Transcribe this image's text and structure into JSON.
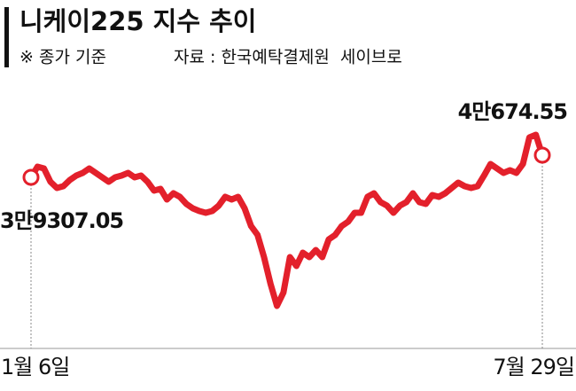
{
  "chart_data": {
    "type": "line",
    "title": "니케이225 지수 추이",
    "subtitle": "※ 종가 기준",
    "source": "자료 : 한국예탁결제원  세이브로",
    "color": "#e3202b",
    "categories": [
      "1월 6일",
      null,
      null,
      null,
      null,
      null,
      null,
      null,
      null,
      null,
      null,
      null,
      null,
      null,
      null,
      null,
      null,
      null,
      null,
      null,
      null,
      null,
      null,
      null,
      null,
      null,
      null,
      null,
      null,
      null,
      null,
      null,
      null,
      null,
      null,
      null,
      null,
      null,
      null,
      null,
      null,
      null,
      null,
      null,
      null,
      null,
      null,
      null,
      null,
      null,
      null,
      null,
      null,
      null,
      null,
      null,
      null,
      null,
      null,
      null,
      null,
      null,
      null,
      null,
      null,
      null,
      null,
      null,
      null,
      null,
      null,
      null,
      null,
      null,
      null,
      null,
      null,
      null,
      null,
      "7월 29일"
    ],
    "values": [
      39307.05,
      39963,
      39854,
      39034,
      38650,
      38760,
      39143,
      39417,
      39581,
      39854,
      39581,
      39307,
      39034,
      39307,
      39417,
      39581,
      39307,
      39417,
      39034,
      38487,
      38596,
      37940,
      38322,
      38104,
      37666,
      37393,
      37228,
      37119,
      37228,
      37557,
      38104,
      37940,
      38104,
      37393,
      36299,
      35752,
      34384,
      32743,
      31375,
      32196,
      34384,
      33837,
      34658,
      34384,
      34822,
      34384,
      35478,
      35752,
      36299,
      36572,
      37119,
      37119,
      38104,
      38322,
      37776,
      37557,
      37119,
      37557,
      37776,
      38322,
      37776,
      37666,
      38213,
      38104,
      38322,
      38650,
      38979,
      38760,
      38650,
      38760,
      39417,
      40128,
      39854,
      39581,
      39745,
      39581,
      40128,
      41769,
      41933,
      40674.55
    ],
    "value_labels": [
      "3만9307.05",
      null,
      null,
      null,
      null,
      null,
      null,
      null,
      null,
      null,
      null,
      null,
      null,
      null,
      null,
      null,
      null,
      null,
      null,
      null,
      null,
      null,
      null,
      null,
      null,
      null,
      null,
      null,
      null,
      null,
      null,
      null,
      null,
      null,
      null,
      null,
      null,
      null,
      null,
      null,
      null,
      null,
      null,
      null,
      null,
      null,
      null,
      null,
      null,
      null,
      null,
      null,
      null,
      null,
      null,
      null,
      null,
      null,
      null,
      null,
      null,
      null,
      null,
      null,
      null,
      null,
      null,
      null,
      null,
      null,
      null,
      null,
      null,
      null,
      null,
      null,
      null,
      null,
      null,
      "4만674.55"
    ]
  }
}
